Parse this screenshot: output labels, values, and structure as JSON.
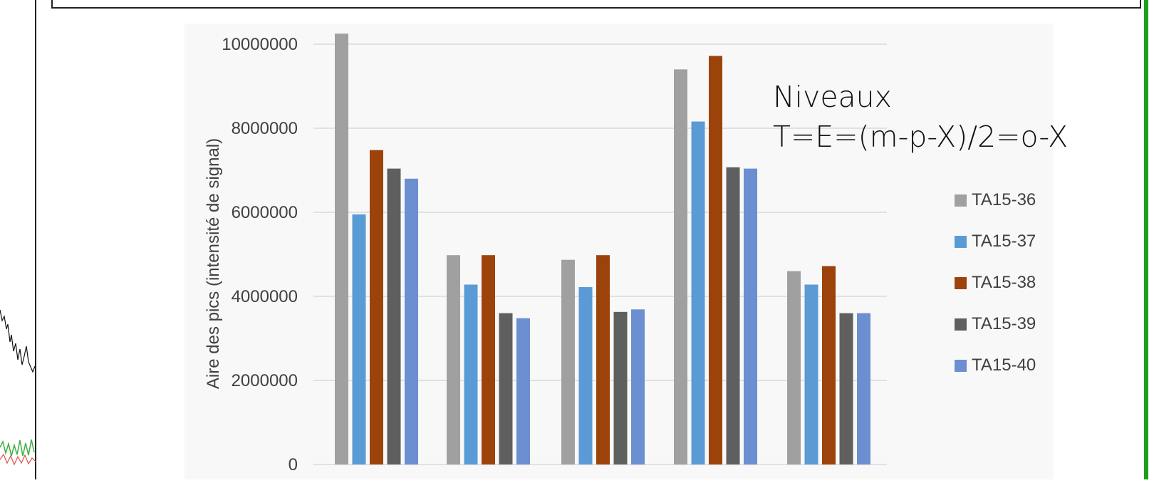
{
  "chart_data": {
    "type": "bar",
    "ylabel": "Aire des pics (intensité de signal)",
    "ylim": [
      0,
      10000000
    ],
    "yticks": [
      "10000000",
      "8000000",
      "6000000",
      "4000000",
      "2000000",
      "0"
    ],
    "grid": true,
    "legend_position": "right",
    "categories": [
      "",
      "",
      "",
      "",
      ""
    ],
    "series": [
      {
        "name": "TA15-36",
        "color": "#a0a0a0",
        "values": [
          10250000,
          4980000,
          4870000,
          9400000,
          4600000
        ]
      },
      {
        "name": "TA15-37",
        "color": "#5b9bd5",
        "values": [
          5950000,
          4280000,
          4220000,
          8160000,
          4280000
        ]
      },
      {
        "name": "TA15-38",
        "color": "#9c430c",
        "values": [
          7480000,
          4980000,
          4980000,
          9720000,
          4720000
        ]
      },
      {
        "name": "TA15-39",
        "color": "#5f5f5f",
        "values": [
          7040000,
          3600000,
          3630000,
          7070000,
          3600000
        ]
      },
      {
        "name": "TA15-40",
        "color": "#6b8fd1",
        "values": [
          6800000,
          3480000,
          3690000,
          7040000,
          3600000
        ]
      }
    ]
  },
  "annotation": {
    "line1": "Niveaux",
    "line2": "T=E=(m-p-X)/2=o-X"
  },
  "legend": {
    "items": [
      {
        "label": "TA15-36",
        "color": "#a0a0a0"
      },
      {
        "label": "TA15-37",
        "color": "#5b9bd5"
      },
      {
        "label": "TA15-38",
        "color": "#9c430c"
      },
      {
        "label": "TA15-39",
        "color": "#5f5f5f"
      },
      {
        "label": "TA15-40",
        "color": "#6b8fd1"
      }
    ]
  }
}
